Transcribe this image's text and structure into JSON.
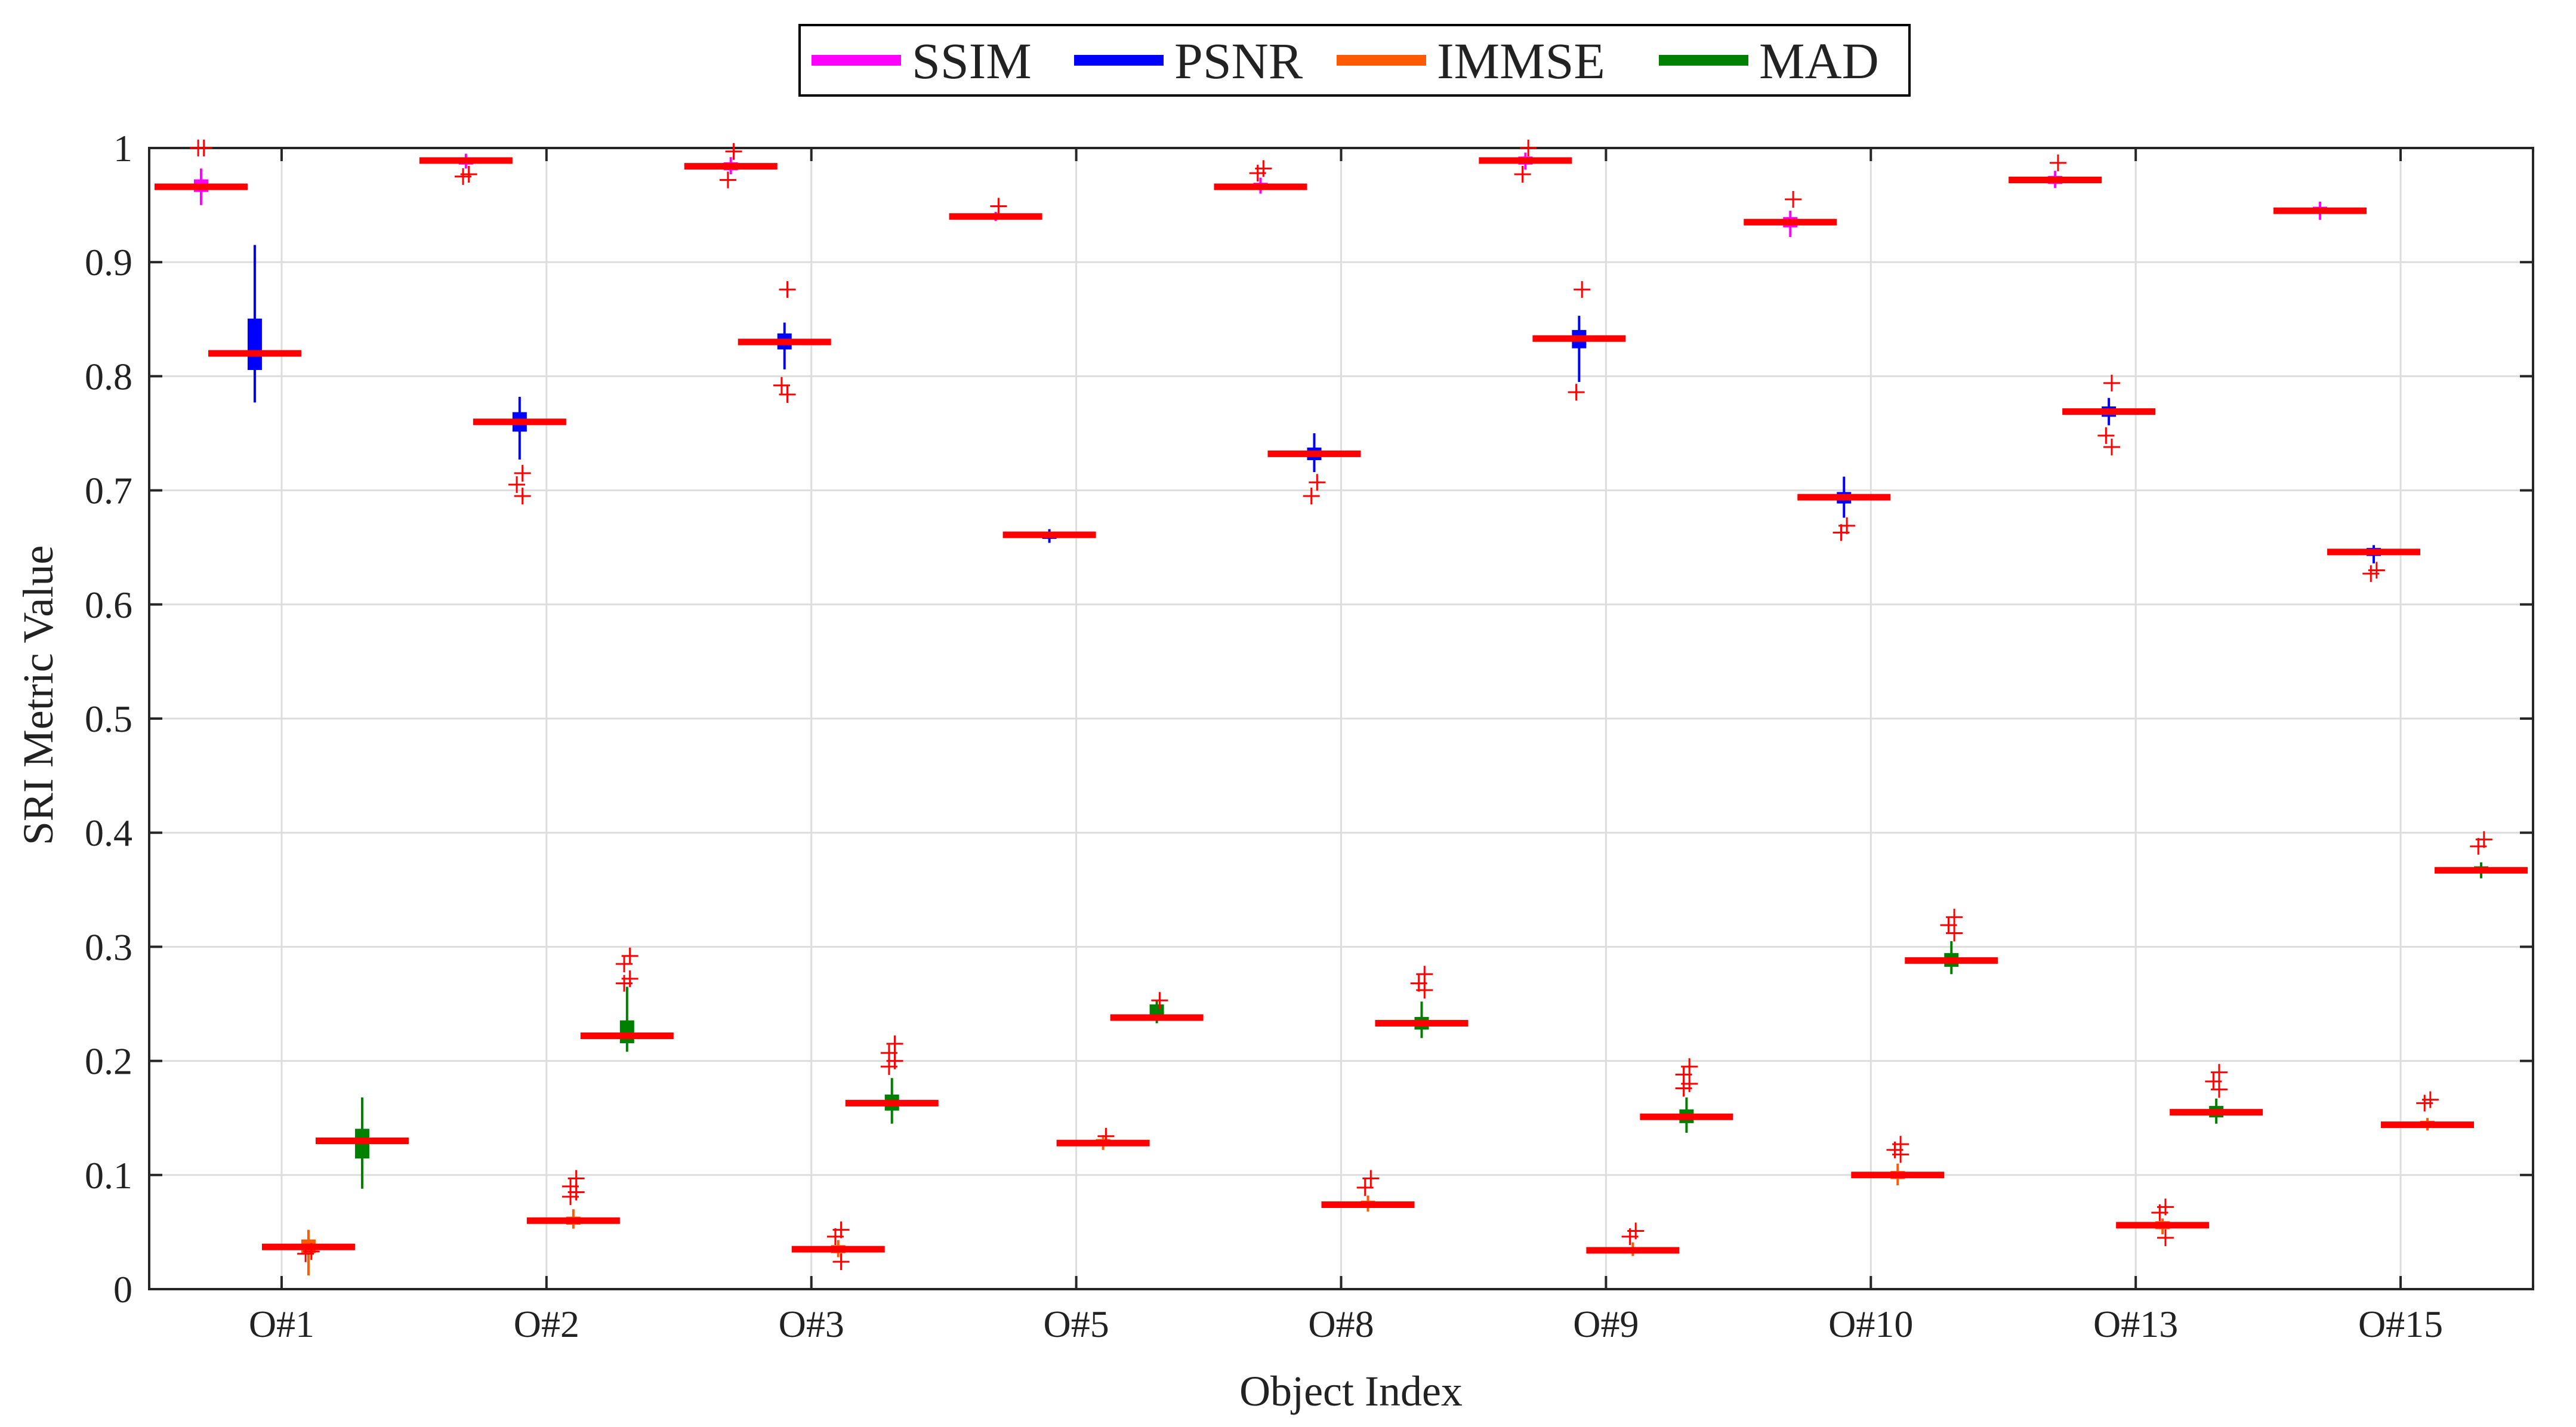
{
  "chart_data": {
    "type": "box",
    "xlabel": "Object Index",
    "ylabel": "SRI Metric Value",
    "ylim": [
      0,
      1
    ],
    "yticks": [
      0,
      0.1,
      0.2,
      0.3,
      0.4,
      0.5,
      0.6,
      0.7,
      0.8,
      0.9,
      1
    ],
    "ytick_labels": [
      "0",
      "0.1",
      "0.2",
      "0.3",
      "0.4",
      "0.5",
      "0.6",
      "0.7",
      "0.8",
      "0.9",
      "1"
    ],
    "grid": true,
    "legend_position": "top-center",
    "median_color": "#ff0000",
    "outlier_color": "#ff0000",
    "categories": [
      "O#1",
      "O#2",
      "O#3",
      "O#5",
      "O#8",
      "O#9",
      "O#10",
      "O#13",
      "O#15"
    ],
    "series": [
      {
        "name": "SSIM",
        "color": "#ff00ff",
        "boxes": [
          {
            "q1": 0.962,
            "median": 0.966,
            "q3": 0.972,
            "whisker_low": 0.95,
            "whisker_high": 0.982,
            "outliers": [
              1.0,
              1.0
            ]
          },
          {
            "q1": 0.986,
            "median": 0.989,
            "q3": 0.991,
            "whisker_low": 0.982,
            "whisker_high": 0.995,
            "outliers": [
              0.977,
              0.975
            ]
          },
          {
            "q1": 0.981,
            "median": 0.984,
            "q3": 0.987,
            "whisker_low": 0.977,
            "whisker_high": 0.992,
            "outliers": [
              0.997,
              0.972
            ]
          },
          {
            "q1": 0.938,
            "median": 0.94,
            "q3": 0.942,
            "whisker_low": 0.936,
            "whisker_high": 0.944,
            "outliers": [
              0.949
            ]
          },
          {
            "q1": 0.964,
            "median": 0.966,
            "q3": 0.969,
            "whisker_low": 0.96,
            "whisker_high": 0.974,
            "outliers": [
              0.982,
              0.978
            ]
          },
          {
            "q1": 0.986,
            "median": 0.989,
            "q3": 0.992,
            "whisker_low": 0.981,
            "whisker_high": 0.996,
            "outliers": [
              1.0,
              0.977
            ]
          },
          {
            "q1": 0.931,
            "median": 0.935,
            "q3": 0.939,
            "whisker_low": 0.922,
            "whisker_high": 0.945,
            "outliers": [
              0.955
            ]
          },
          {
            "q1": 0.969,
            "median": 0.972,
            "q3": 0.975,
            "whisker_low": 0.965,
            "whisker_high": 0.98,
            "outliers": [
              0.987
            ]
          },
          {
            "q1": 0.943,
            "median": 0.945,
            "q3": 0.948,
            "whisker_low": 0.937,
            "whisker_high": 0.953,
            "outliers": []
          }
        ]
      },
      {
        "name": "PSNR",
        "color": "#0000ff",
        "boxes": [
          {
            "q1": 0.806,
            "median": 0.82,
            "q3": 0.85,
            "whisker_low": 0.777,
            "whisker_high": 0.915,
            "outliers": []
          },
          {
            "q1": 0.752,
            "median": 0.76,
            "q3": 0.768,
            "whisker_low": 0.727,
            "whisker_high": 0.782,
            "outliers": [
              0.715,
              0.705,
              0.695
            ]
          },
          {
            "q1": 0.824,
            "median": 0.83,
            "q3": 0.837,
            "whisker_low": 0.806,
            "whisker_high": 0.847,
            "outliers": [
              0.876,
              0.792,
              0.784
            ]
          },
          {
            "q1": 0.658,
            "median": 0.661,
            "q3": 0.663,
            "whisker_low": 0.654,
            "whisker_high": 0.666,
            "outliers": []
          },
          {
            "q1": 0.727,
            "median": 0.732,
            "q3": 0.737,
            "whisker_low": 0.716,
            "whisker_high": 0.75,
            "outliers": [
              0.707,
              0.695
            ]
          },
          {
            "q1": 0.825,
            "median": 0.833,
            "q3": 0.84,
            "whisker_low": 0.795,
            "whisker_high": 0.853,
            "outliers": [
              0.876,
              0.786
            ]
          },
          {
            "q1": 0.689,
            "median": 0.694,
            "q3": 0.698,
            "whisker_low": 0.676,
            "whisker_high": 0.712,
            "outliers": [
              0.669,
              0.663
            ]
          },
          {
            "q1": 0.765,
            "median": 0.769,
            "q3": 0.773,
            "whisker_low": 0.757,
            "whisker_high": 0.781,
            "outliers": [
              0.794,
              0.748,
              0.738
            ]
          },
          {
            "q1": 0.643,
            "median": 0.646,
            "q3": 0.649,
            "whisker_low": 0.636,
            "whisker_high": 0.652,
            "outliers": [
              0.63,
              0.627
            ]
          }
        ]
      },
      {
        "name": "IMMSE",
        "color": "#ff5a00",
        "boxes": [
          {
            "q1": 0.032,
            "median": 0.037,
            "q3": 0.043,
            "whisker_low": 0.012,
            "whisker_high": 0.052,
            "outliers": [
              0.033,
              0.031
            ]
          },
          {
            "q1": 0.057,
            "median": 0.06,
            "q3": 0.063,
            "whisker_low": 0.053,
            "whisker_high": 0.07,
            "outliers": [
              0.097,
              0.09,
              0.085,
              0.081
            ]
          },
          {
            "q1": 0.032,
            "median": 0.035,
            "q3": 0.038,
            "whisker_low": 0.028,
            "whisker_high": 0.043,
            "outliers": [
              0.052,
              0.046,
              0.024
            ]
          },
          {
            "q1": 0.126,
            "median": 0.128,
            "q3": 0.131,
            "whisker_low": 0.122,
            "whisker_high": 0.135,
            "outliers": [
              0.134
            ]
          },
          {
            "q1": 0.072,
            "median": 0.074,
            "q3": 0.077,
            "whisker_low": 0.068,
            "whisker_high": 0.082,
            "outliers": [
              0.097,
              0.089
            ]
          },
          {
            "q1": 0.032,
            "median": 0.034,
            "q3": 0.036,
            "whisker_low": 0.029,
            "whisker_high": 0.041,
            "outliers": [
              0.051,
              0.046
            ]
          },
          {
            "q1": 0.097,
            "median": 0.1,
            "q3": 0.103,
            "whisker_low": 0.091,
            "whisker_high": 0.11,
            "outliers": [
              0.127,
              0.122,
              0.118
            ]
          },
          {
            "q1": 0.053,
            "median": 0.056,
            "q3": 0.059,
            "whisker_low": 0.048,
            "whisker_high": 0.062,
            "outliers": [
              0.072,
              0.067,
              0.045
            ]
          },
          {
            "q1": 0.142,
            "median": 0.144,
            "q3": 0.147,
            "whisker_low": 0.139,
            "whisker_high": 0.15,
            "outliers": [
              0.166,
              0.163
            ]
          }
        ]
      },
      {
        "name": "MAD",
        "color": "#008000",
        "boxes": [
          {
            "q1": 0.115,
            "median": 0.13,
            "q3": 0.14,
            "whisker_low": 0.088,
            "whisker_high": 0.168,
            "outliers": []
          },
          {
            "q1": 0.216,
            "median": 0.222,
            "q3": 0.235,
            "whisker_low": 0.208,
            "whisker_high": 0.265,
            "outliers": [
              0.292,
              0.285,
              0.272,
              0.268
            ]
          },
          {
            "q1": 0.157,
            "median": 0.163,
            "q3": 0.17,
            "whisker_low": 0.145,
            "whisker_high": 0.185,
            "outliers": [
              0.215,
              0.207,
              0.2,
              0.195
            ]
          },
          {
            "q1": 0.236,
            "median": 0.238,
            "q3": 0.249,
            "whisker_low": 0.233,
            "whisker_high": 0.253,
            "outliers": [
              0.253
            ]
          },
          {
            "q1": 0.228,
            "median": 0.233,
            "q3": 0.238,
            "whisker_low": 0.22,
            "whisker_high": 0.252,
            "outliers": [
              0.276,
              0.268,
              0.262
            ]
          },
          {
            "q1": 0.146,
            "median": 0.151,
            "q3": 0.157,
            "whisker_low": 0.137,
            "whisker_high": 0.168,
            "outliers": [
              0.195,
              0.188,
              0.18,
              0.176
            ]
          },
          {
            "q1": 0.283,
            "median": 0.288,
            "q3": 0.294,
            "whisker_low": 0.276,
            "whisker_high": 0.305,
            "outliers": [
              0.326,
              0.319,
              0.312
            ]
          },
          {
            "q1": 0.151,
            "median": 0.155,
            "q3": 0.16,
            "whisker_low": 0.145,
            "whisker_high": 0.167,
            "outliers": [
              0.19,
              0.182,
              0.175
            ]
          },
          {
            "q1": 0.365,
            "median": 0.367,
            "q3": 0.37,
            "whisker_low": 0.36,
            "whisker_high": 0.374,
            "outliers": [
              0.394,
              0.388
            ]
          }
        ]
      }
    ]
  }
}
